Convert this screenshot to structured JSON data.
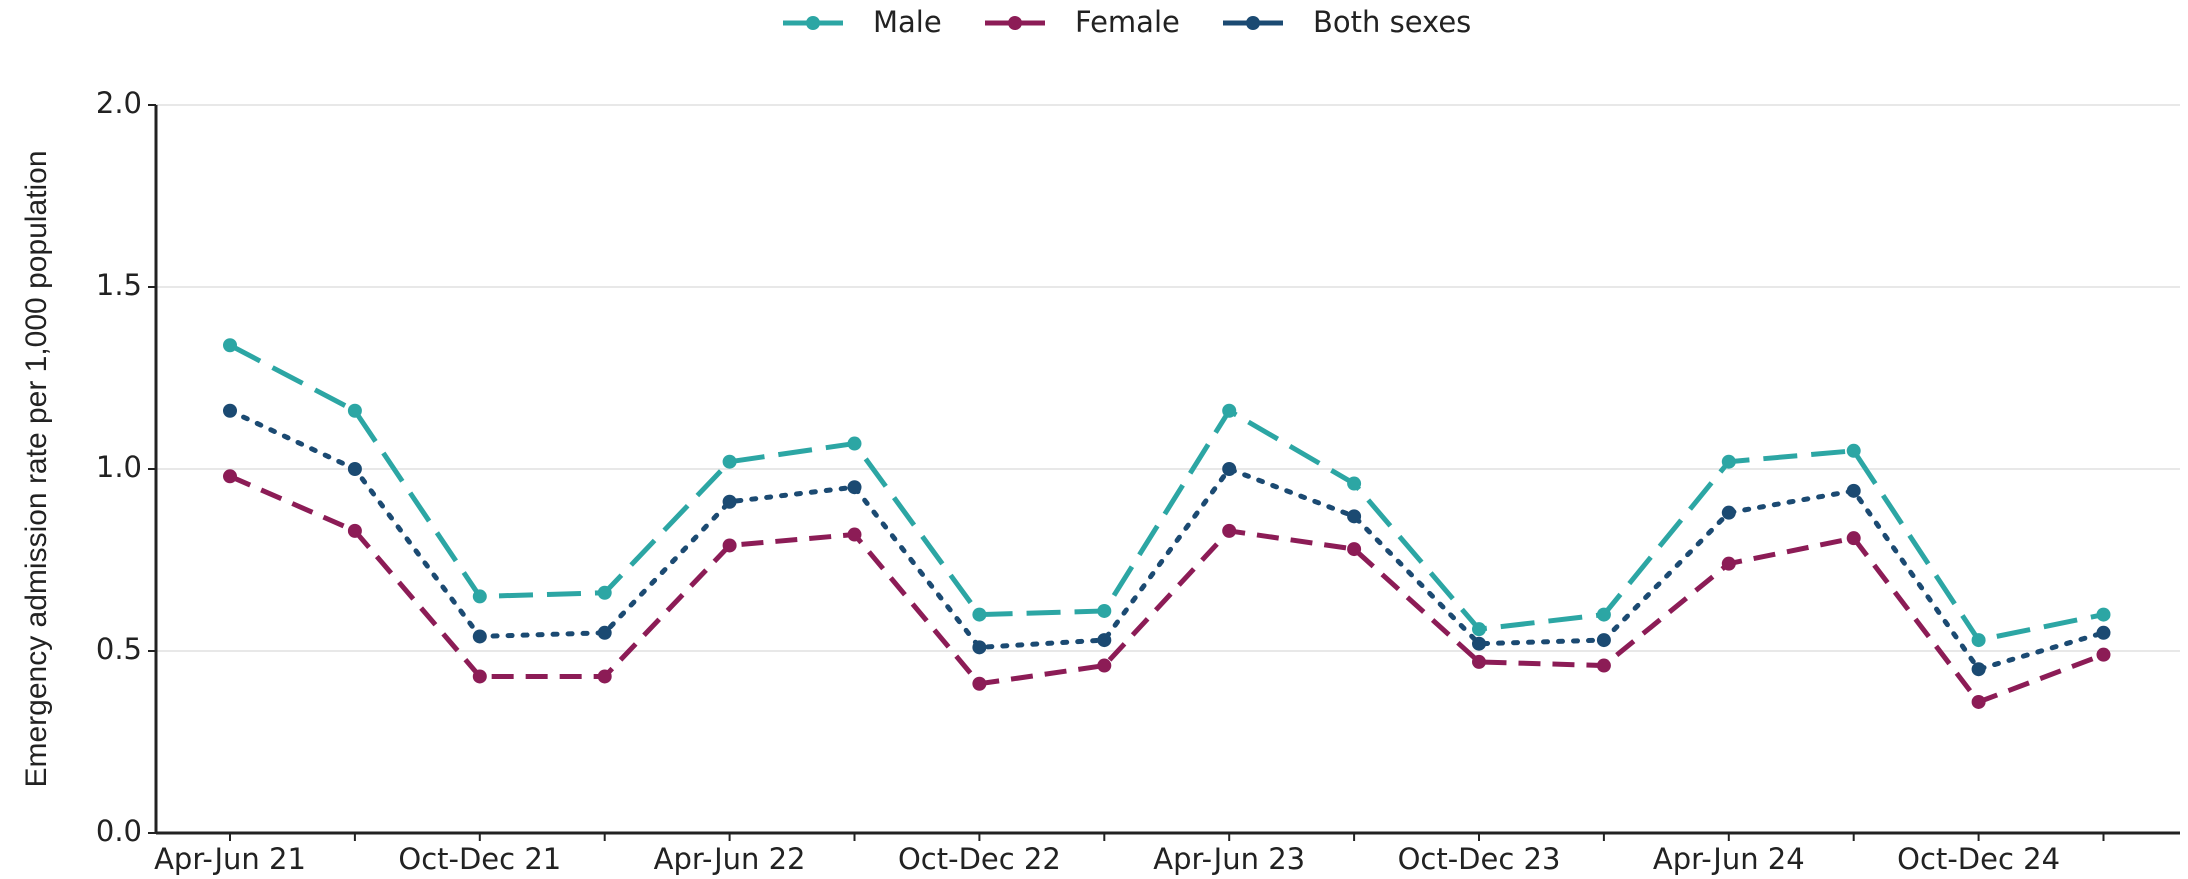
{
  "chart_data": {
    "type": "line",
    "y_label": "Emergency admission rate per 1,000 population",
    "categories": [
      "Apr-Jun 21",
      null,
      "Oct-Dec 21",
      null,
      "Apr-Jun 22",
      null,
      "Oct-Dec 22",
      null,
      "Apr-Jun 23",
      null,
      "Oct-Dec 23",
      null,
      "Apr-Jun 24",
      null,
      "Oct-Dec 24",
      null
    ],
    "series": [
      {
        "name": "Male",
        "color": "#2ca6a4",
        "linestyle": "dashed",
        "values": [
          1.34,
          1.16,
          0.65,
          0.66,
          1.02,
          1.07,
          0.6,
          0.61,
          1.16,
          0.96,
          0.56,
          0.6,
          1.02,
          1.05,
          0.53,
          0.6
        ]
      },
      {
        "name": "Female",
        "color": "#8c1c56",
        "linestyle": "dashed-short",
        "values": [
          0.98,
          0.83,
          0.43,
          0.43,
          0.79,
          0.82,
          0.41,
          0.46,
          0.83,
          0.78,
          0.47,
          0.46,
          0.74,
          0.81,
          0.36,
          0.49
        ]
      },
      {
        "name": "Both sexes",
        "color": "#1b4a72",
        "linestyle": "dotted",
        "values": [
          1.16,
          1.0,
          0.54,
          0.55,
          0.91,
          0.95,
          0.51,
          0.53,
          1.0,
          0.87,
          0.52,
          0.53,
          0.88,
          0.94,
          0.45,
          0.55
        ]
      }
    ],
    "ylim": [
      0,
      2
    ],
    "yticks": [
      {
        "value": 0,
        "label": "0.0"
      },
      {
        "value": 0.5,
        "label": "0.5"
      },
      {
        "value": 1,
        "label": "1.0"
      },
      {
        "value": 1.5,
        "label": "1.5"
      },
      {
        "value": 2,
        "label": "2.0"
      }
    ],
    "grid": true,
    "legend": "top"
  }
}
